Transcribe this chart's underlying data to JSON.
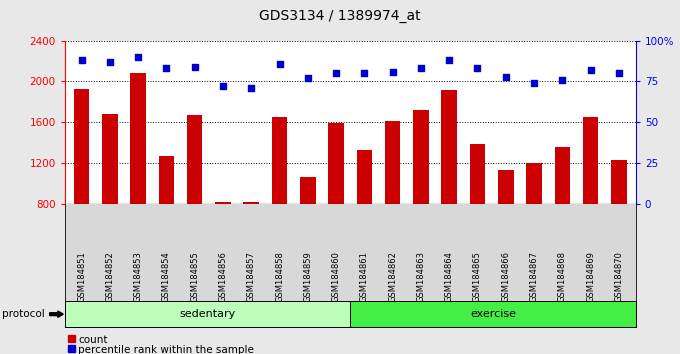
{
  "title": "GDS3134 / 1389974_at",
  "samples": [
    "GSM184851",
    "GSM184852",
    "GSM184853",
    "GSM184854",
    "GSM184855",
    "GSM184856",
    "GSM184857",
    "GSM184858",
    "GSM184859",
    "GSM184860",
    "GSM184861",
    "GSM184862",
    "GSM184863",
    "GSM184864",
    "GSM184865",
    "GSM184866",
    "GSM184867",
    "GSM184868",
    "GSM184869",
    "GSM184870"
  ],
  "bar_values": [
    1930,
    1680,
    2080,
    1270,
    1670,
    820,
    820,
    1650,
    1060,
    1590,
    1330,
    1610,
    1720,
    1920,
    1390,
    1130,
    1200,
    1360,
    1650,
    1230
  ],
  "percentile_values": [
    88,
    87,
    90,
    83,
    84,
    72,
    71,
    86,
    77,
    80,
    80,
    81,
    83,
    88,
    83,
    78,
    74,
    76,
    82,
    80
  ],
  "bar_color": "#cc0000",
  "dot_color": "#0000cc",
  "ylim_left": [
    800,
    2400
  ],
  "ylim_right": [
    0,
    100
  ],
  "yticks_left": [
    800,
    1200,
    1600,
    2000,
    2400
  ],
  "yticks_right": [
    0,
    25,
    50,
    75,
    100
  ],
  "ytick_labels_right": [
    "0",
    "25",
    "50",
    "75",
    "100%"
  ],
  "grid_values": [
    1200,
    1600,
    2000,
    2400
  ],
  "sedentary_count": 10,
  "exercise_count": 10,
  "sedentary_color": "#bbffbb",
  "exercise_color": "#44ee44",
  "protocol_label": "protocol",
  "sedentary_label": "sedentary",
  "exercise_label": "exercise",
  "legend_count_label": "count",
  "legend_pct_label": "percentile rank within the sample",
  "fig_bg_color": "#e8e8e8",
  "plot_bg_color": "#ffffff",
  "xtick_area_color": "#d8d8d8"
}
